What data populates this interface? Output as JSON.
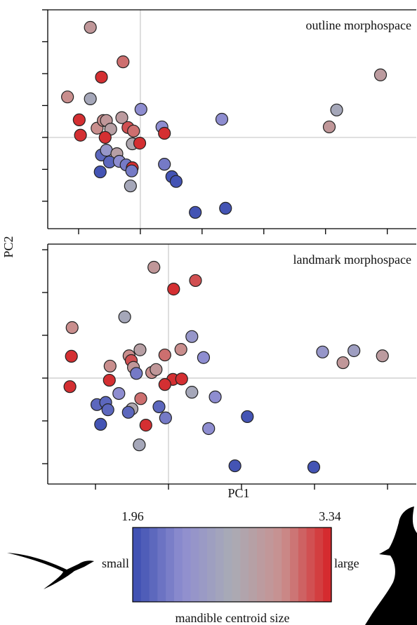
{
  "chart_data": [
    {
      "type": "scatter",
      "annotation": "outline morphospace",
      "x": [
        -0.81,
        -0.28,
        -0.63,
        -1.18,
        -0.81,
        0.01,
        -0.99,
        -0.97,
        -0.7,
        -0.6,
        -0.55,
        -0.48,
        -0.3,
        -0.2,
        -0.11,
        -0.13,
        -0.01,
        0.35,
        0.39,
        -0.57,
        -0.63,
        -0.55,
        -0.38,
        -0.5,
        -0.65,
        -0.34,
        -0.23,
        -0.13,
        -0.14,
        -0.16,
        0.39,
        0.51,
        0.58,
        0.89,
        1.38,
        1.32,
        3.18,
        3.06,
        3.89
      ],
      "y": [
        3.45,
        2.37,
        1.89,
        1.27,
        1.21,
        0.88,
        0.55,
        0.07,
        0.29,
        0.53,
        0.53,
        0.26,
        0.62,
        0.31,
        0.2,
        -0.2,
        -0.18,
        0.33,
        0.13,
        0,
        -0.55,
        -0.4,
        -0.51,
        -0.77,
        -1.08,
        -0.75,
        -0.86,
        -0.95,
        -1.05,
        -1.52,
        -0.84,
        -1.23,
        -1.38,
        -2.35,
        -2.22,
        0.57,
        0.86,
        0.33,
        1.96
      ],
      "c": [
        2.9,
        3.1,
        3.3,
        3.0,
        2.6,
        2.3,
        3.3,
        3.3,
        3.0,
        3.0,
        2.9,
        2.8,
        2.85,
        3.2,
        3.1,
        2.7,
        3.3,
        2.3,
        3.3,
        3.3,
        2.1,
        2.4,
        2.8,
        2.1,
        2.0,
        2.3,
        2.2,
        3.3,
        2.2,
        2.6,
        2.2,
        2.0,
        2.0,
        2.0,
        2.0,
        2.3,
        2.6,
        2.9,
        2.85
      ],
      "xlim": [
        -1.5,
        4.47
      ],
      "ylim": [
        -2.86,
        4
      ],
      "xticks": [
        -1,
        0,
        1,
        2,
        3,
        4
      ],
      "yticks": [
        -2,
        -1,
        0,
        1,
        2,
        3,
        4
      ],
      "xref": 0,
      "yref": 0
    },
    {
      "type": "scatter",
      "annotation": "landmark morphospace",
      "x": [
        -0.2,
        0.37,
        0.07,
        -1.32,
        -0.6,
        -1.33,
        0.32,
        0.48,
        -0.39,
        -0.54,
        -0.51,
        -0.48,
        -0.05,
        0.17,
        -0.8,
        -0.44,
        -0.23,
        -0.17,
        -0.81,
        -1.35,
        0.06,
        0.18,
        -0.05,
        0.32,
        -0.68,
        0.64,
        -0.38,
        -0.98,
        -0.86,
        -0.83,
        -0.5,
        -0.55,
        -0.13,
        -0.04,
        -0.93,
        -0.31,
        1.08,
        0.55,
        -0.4,
        0.91,
        1.99,
        2.11,
        2.54,
        2.39,
        2.93
      ],
      "y": [
        2.59,
        2.28,
        2.08,
        1.18,
        1.43,
        0.51,
        0.97,
        0.48,
        0.66,
        0.52,
        0.41,
        0.25,
        0.54,
        0.67,
        0.28,
        0.11,
        0.13,
        0.2,
        -0.05,
        -0.2,
        -0.03,
        -0.02,
        -0.15,
        -0.33,
        -0.36,
        -0.44,
        -0.48,
        -0.62,
        -0.57,
        -0.74,
        -0.72,
        -0.8,
        -0.67,
        -0.93,
        -1.08,
        -1.1,
        -0.9,
        -1.18,
        -1.56,
        -2.05,
        -2.08,
        0.61,
        0.64,
        0.36,
        0.52
      ],
      "c": [
        2.9,
        3.2,
        3.3,
        3.0,
        2.6,
        3.3,
        2.4,
        2.3,
        2.8,
        3.0,
        3.2,
        2.9,
        3.1,
        3.0,
        3.0,
        2.2,
        3.0,
        2.9,
        3.3,
        3.3,
        3.3,
        3.3,
        3.3,
        2.6,
        2.3,
        2.3,
        3.1,
        2.1,
        2.1,
        2.1,
        2.7,
        2.1,
        2.1,
        2.2,
        2.0,
        3.3,
        2.0,
        2.3,
        2.6,
        2.0,
        2.0,
        2.4,
        2.5,
        2.9,
        2.85
      ],
      "xlim": [
        -1.654,
        3.394
      ],
      "ylim": [
        -2.475,
        3.131
      ],
      "xticks": [
        -1,
        0,
        1,
        2,
        3
      ],
      "yticks": [
        -2,
        -1,
        0,
        1,
        2,
        3
      ],
      "xref": 0,
      "yref": 0
    }
  ],
  "x_label": "PC1",
  "y_label": "PC2",
  "colorbar": {
    "clim": [
      1.96,
      3.34
    ],
    "colormap": [
      "#3a4cb0",
      "#8f8ed0",
      "#a9abb5",
      "#c9908f",
      "#d62226"
    ],
    "low_label": "small",
    "high_label": "large",
    "title": "mandible centroid size"
  }
}
